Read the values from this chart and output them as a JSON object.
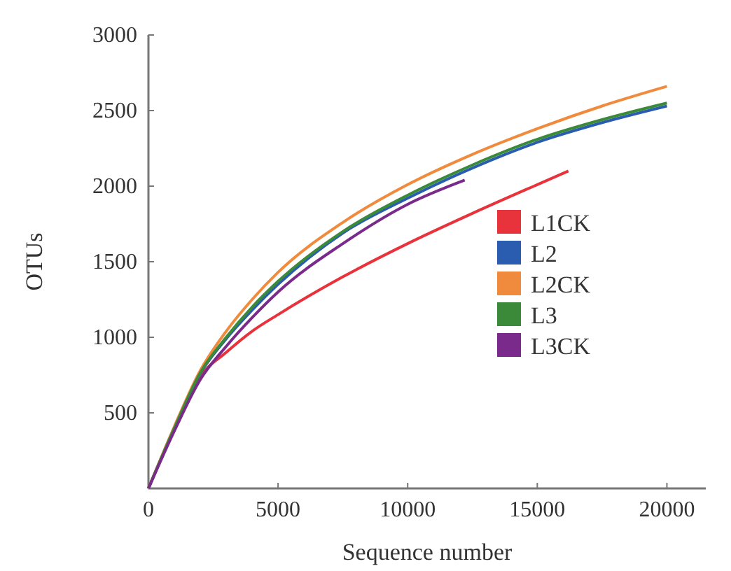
{
  "chart_data": {
    "type": "line",
    "xlabel": "Sequence number",
    "ylabel": "OTUs",
    "xlim": [
      0,
      21500
    ],
    "ylim": [
      0,
      3000
    ],
    "xticks": [
      0,
      5000,
      10000,
      15000,
      20000
    ],
    "yticks": [
      {
        "value": 0,
        "label": null
      },
      500,
      1000,
      1500,
      2000,
      2500,
      3000
    ],
    "legend": "right",
    "marker": "none",
    "line_style": "solid",
    "grid": false,
    "series": [
      {
        "name": "L1CK",
        "color": "#e8323c",
        "x": [
          0,
          1000,
          2000,
          3000,
          4000,
          5000,
          7500,
          10000,
          12500,
          15000,
          16200
        ],
        "values": [
          0,
          390,
          740,
          900,
          1040,
          1150,
          1400,
          1620,
          1820,
          2010,
          2100
        ]
      },
      {
        "name": "L2",
        "color": "#2a5db0",
        "x": [
          0,
          1000,
          2000,
          3000,
          4000,
          5000,
          7500,
          10000,
          12500,
          15000,
          17500,
          20000
        ],
        "values": [
          0,
          400,
          760,
          990,
          1180,
          1350,
          1690,
          1920,
          2120,
          2290,
          2420,
          2530
        ]
      },
      {
        "name": "L2CK",
        "color": "#f08a3c",
        "x": [
          0,
          1000,
          2000,
          3000,
          4000,
          5000,
          7500,
          10000,
          12500,
          15000,
          17500,
          20000
        ],
        "values": [
          0,
          410,
          780,
          1040,
          1250,
          1430,
          1760,
          2010,
          2210,
          2380,
          2530,
          2660
        ]
      },
      {
        "name": "L3",
        "color": "#3a8a3a",
        "x": [
          0,
          1000,
          2000,
          3000,
          4000,
          5000,
          7500,
          10000,
          12500,
          15000,
          17500,
          20000
        ],
        "values": [
          0,
          400,
          765,
          1000,
          1200,
          1370,
          1700,
          1940,
          2140,
          2310,
          2440,
          2550
        ]
      },
      {
        "name": "L3CK",
        "color": "#7a2a8a",
        "x": [
          0,
          1000,
          2000,
          3000,
          4000,
          5000,
          7500,
          10000,
          12200
        ],
        "values": [
          0,
          380,
          720,
          940,
          1130,
          1300,
          1620,
          1880,
          2040
        ]
      }
    ]
  }
}
